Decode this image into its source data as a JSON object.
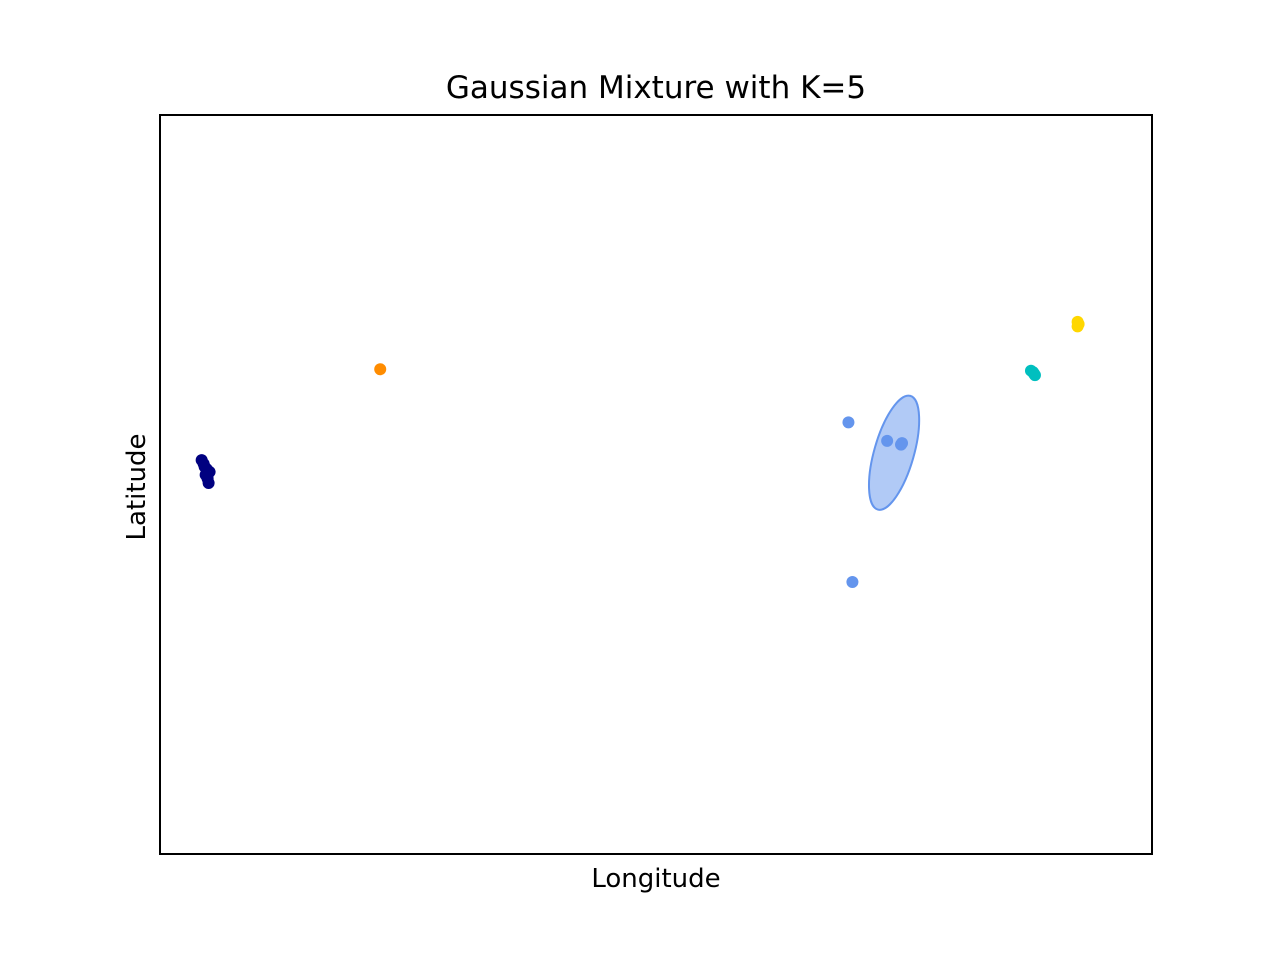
{
  "chart_data": {
    "type": "scatter",
    "title": "Gaussian Mixture with K=5",
    "xlabel": "Longitude",
    "ylabel": "Latitude",
    "xlim": [
      0,
      100
    ],
    "ylim": [
      0,
      100
    ],
    "ticks": false,
    "grid": false,
    "legend": "none",
    "clusters": [
      {
        "color": "#000080",
        "points": [
          {
            "x": 4.2,
            "y": 53.3
          },
          {
            "x": 4.4,
            "y": 52.8
          },
          {
            "x": 4.7,
            "y": 52.1
          },
          {
            "x": 5.0,
            "y": 51.7
          },
          {
            "x": 4.8,
            "y": 50.8
          },
          {
            "x": 4.9,
            "y": 50.2
          },
          {
            "x": 4.5,
            "y": 52.4
          },
          {
            "x": 4.6,
            "y": 51.3
          }
        ]
      },
      {
        "color": "#ff8c00",
        "points": [
          {
            "x": 22.2,
            "y": 65.6
          }
        ]
      },
      {
        "color": "#6495ed",
        "ellipse": {
          "cx": 74.0,
          "cy": 54.3,
          "rx": 2.0,
          "ry": 8.0,
          "angle_deg": 16,
          "fill_opacity": 0.5
        },
        "points": [
          {
            "x": 69.4,
            "y": 58.4
          },
          {
            "x": 73.3,
            "y": 55.9
          },
          {
            "x": 74.7,
            "y": 55.4
          },
          {
            "x": 74.8,
            "y": 55.6
          },
          {
            "x": 69.8,
            "y": 36.8
          }
        ]
      },
      {
        "color": "#00bfbf",
        "points": [
          {
            "x": 87.8,
            "y": 65.4
          },
          {
            "x": 88.0,
            "y": 65.2
          },
          {
            "x": 88.1,
            "y": 65.0
          },
          {
            "x": 88.2,
            "y": 64.8
          }
        ]
      },
      {
        "color": "#ffd700",
        "points": [
          {
            "x": 92.5,
            "y": 72.0
          },
          {
            "x": 92.6,
            "y": 71.7
          },
          {
            "x": 92.5,
            "y": 71.4
          }
        ]
      }
    ]
  }
}
